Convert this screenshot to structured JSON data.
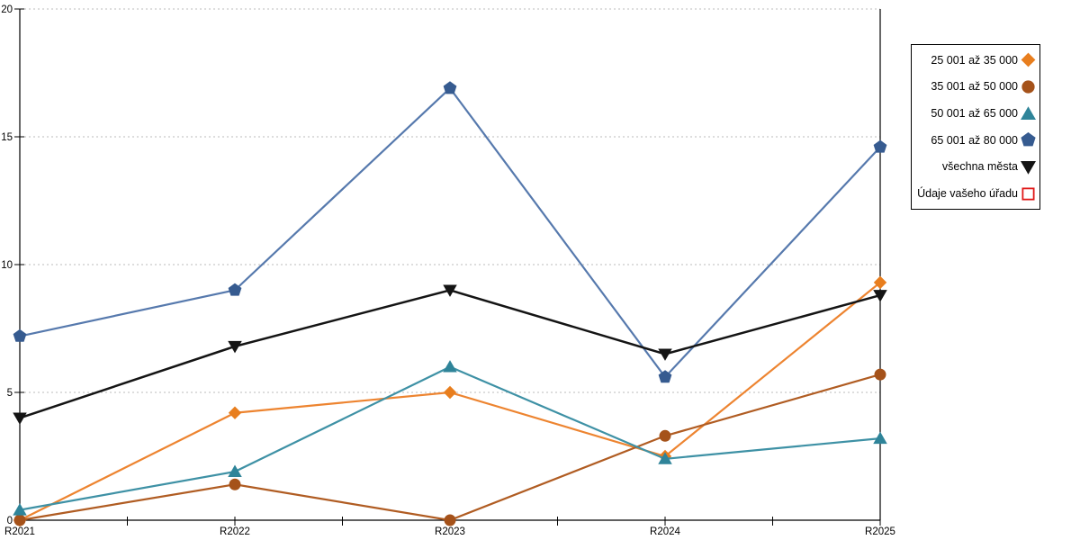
{
  "chart_data": {
    "type": "line",
    "title": "",
    "xlabel": "",
    "ylabel": "",
    "categories": [
      "R2021",
      "R2022",
      "R2023",
      "R2024",
      "R2025"
    ],
    "ylim": [
      0,
      20
    ],
    "yticks": [
      0,
      5,
      10,
      15,
      20
    ],
    "grid": "horizontal-dotted",
    "legend_position": "top-right-outside",
    "series": [
      {
        "name": "25 001 až 35 000",
        "marker": "diamond",
        "marker_color": "#E87E1E",
        "line_color": "#ED8430",
        "values": [
          0,
          4.2,
          5.0,
          2.5,
          9.3
        ]
      },
      {
        "name": "35 001 až 50 000",
        "marker": "circle",
        "marker_color": "#A5521A",
        "line_color": "#B05C22",
        "values": [
          0,
          1.4,
          0,
          3.3,
          5.7
        ]
      },
      {
        "name": "50 001 až 65 000",
        "marker": "triangle-up",
        "marker_color": "#2F8499",
        "line_color": "#3E91A5",
        "values": [
          0.4,
          1.9,
          6.0,
          2.4,
          3.2
        ]
      },
      {
        "name": "65 001 až 80 000",
        "marker": "pentagon",
        "marker_color": "#365B90",
        "line_color": "#5679AD",
        "values": [
          7.2,
          9.0,
          16.9,
          5.6,
          14.6
        ]
      },
      {
        "name": "všechna města",
        "marker": "triangle-down",
        "marker_color": "#141414",
        "line_color": "#141414",
        "values": [
          4.0,
          6.8,
          9.0,
          6.5,
          8.8
        ]
      },
      {
        "name": "Údaje vašeho úřadu",
        "marker": "square-open",
        "marker_color": "#E01818",
        "line_color": "#E01818",
        "values": []
      }
    ]
  },
  "axes": {
    "y_tick_labels": [
      "0",
      "5",
      "10",
      "15",
      "20"
    ],
    "x_tick_labels": [
      "R2021",
      "R2022",
      "R2023",
      "R2024",
      "R2025"
    ]
  },
  "colors": {
    "background": "#FFFFFF",
    "axis": "#000000",
    "grid": "#BBBBBB",
    "text": "#000000"
  }
}
